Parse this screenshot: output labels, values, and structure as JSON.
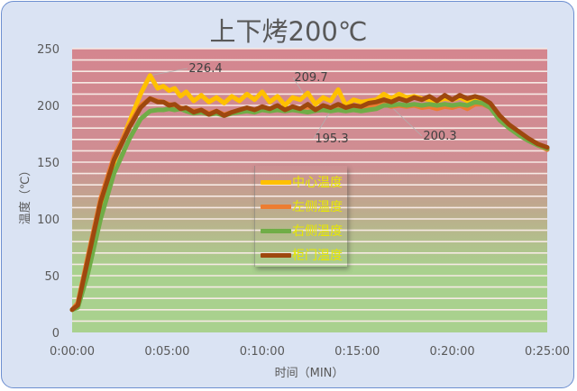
{
  "chart_data": {
    "type": "line",
    "title": "上下烤200℃",
    "xlabel": "时间（MIN）",
    "ylabel": "温度（℃）",
    "ylim": [
      0,
      250
    ],
    "xlim_minutes": [
      0,
      25
    ],
    "y_ticks": [
      "0",
      "50",
      "100",
      "150",
      "200",
      "250"
    ],
    "x_ticks": [
      "0:00:00",
      "0:05:00",
      "0:10:00",
      "0:15:00",
      "0:20:00",
      "0:25:00"
    ],
    "grid": "horizontal every 10",
    "background_gradient": {
      "top": "#d4868f",
      "bottom": "#a9d18e"
    },
    "legend_position": "center",
    "series": [
      {
        "name": "中心温度",
        "color": "#ffc000",
        "x": [
          0,
          0.3,
          0.8,
          1.5,
          2.2,
          3.0,
          3.6,
          4.1,
          4.5,
          4.8,
          5.1,
          5.4,
          5.7,
          6.0,
          6.4,
          6.8,
          7.2,
          7.6,
          8.0,
          8.4,
          8.8,
          9.2,
          9.6,
          10.0,
          10.4,
          10.8,
          11.2,
          11.6,
          12.0,
          12.4,
          12.8,
          13.2,
          13.6,
          14.0,
          14.4,
          14.8,
          15.2,
          15.6,
          16.0,
          16.4,
          16.8,
          17.2,
          17.6,
          18.0,
          18.4,
          18.8,
          19.2,
          19.6,
          20.0,
          20.4,
          20.8,
          21.2,
          21.6,
          22.0,
          22.5,
          23.0,
          23.5,
          24.0,
          24.5,
          25.0
        ],
        "y": [
          20,
          25,
          60,
          110,
          150,
          185,
          210,
          226.4,
          215,
          217,
          213,
          215,
          208,
          212,
          204,
          209,
          203,
          207,
          202,
          208,
          204,
          210,
          205,
          212,
          203,
          208,
          200,
          207,
          205,
          211,
          201,
          207,
          204,
          214,
          200,
          205,
          203,
          204,
          205,
          210,
          206,
          210,
          207,
          208,
          206,
          205,
          204,
          206,
          205,
          207,
          204,
          205,
          203,
          200,
          190,
          182,
          176,
          170,
          166,
          162
        ]
      },
      {
        "name": "左侧温度",
        "color": "#ed7d31",
        "x": [
          0,
          0.3,
          0.8,
          1.5,
          2.2,
          3.0,
          3.6,
          4.1,
          4.5,
          4.8,
          5.1,
          5.4,
          5.7,
          6.0,
          6.4,
          6.8,
          7.2,
          7.6,
          8.0,
          8.4,
          8.8,
          9.2,
          9.6,
          10.0,
          10.4,
          10.8,
          11.2,
          11.6,
          12.0,
          12.4,
          12.8,
          13.2,
          13.6,
          14.0,
          14.4,
          14.8,
          15.2,
          15.6,
          16.0,
          16.4,
          16.8,
          17.2,
          17.6,
          18.0,
          18.4,
          18.8,
          19.2,
          19.6,
          20.0,
          20.4,
          20.8,
          21.2,
          21.6,
          22.0,
          22.5,
          23.0,
          23.5,
          24.0,
          24.5,
          25.0
        ],
        "y": [
          20,
          26,
          65,
          118,
          155,
          182,
          200,
          206,
          204,
          203,
          201,
          200,
          198,
          197,
          195,
          196,
          193,
          195,
          192,
          194,
          195,
          197,
          196,
          198,
          197,
          199,
          196,
          198,
          197,
          199,
          196,
          198,
          197,
          198,
          196,
          197,
          196,
          199,
          200,
          201,
          199,
          200,
          199,
          200,
          198,
          199,
          197,
          199,
          198,
          200,
          197,
          201,
          201,
          198,
          188,
          180,
          175,
          170,
          165,
          161
        ]
      },
      {
        "name": "右侧温度",
        "color": "#70ad47",
        "x": [
          0,
          0.3,
          0.8,
          1.5,
          2.2,
          3.0,
          3.6,
          4.1,
          4.5,
          4.8,
          5.1,
          5.4,
          5.7,
          6.0,
          6.4,
          6.8,
          7.2,
          7.6,
          8.0,
          8.4,
          8.8,
          9.2,
          9.6,
          10.0,
          10.4,
          10.8,
          11.2,
          11.6,
          12.0,
          12.4,
          12.8,
          13.2,
          13.6,
          14.0,
          14.4,
          14.8,
          15.2,
          15.6,
          16.0,
          16.4,
          16.8,
          17.2,
          17.6,
          18.0,
          18.4,
          18.8,
          19.2,
          19.6,
          20.0,
          20.4,
          20.8,
          21.2,
          21.6,
          22.0,
          22.5,
          23.0,
          23.5,
          24.0,
          24.5,
          25.0
        ],
        "y": [
          20,
          22,
          50,
          100,
          140,
          170,
          188,
          195,
          196,
          196,
          197,
          196,
          197,
          195,
          193,
          194,
          192,
          193,
          191,
          193,
          194,
          195,
          194,
          196,
          195,
          196,
          195,
          196,
          195,
          194,
          195.3,
          196,
          195,
          196,
          195,
          196,
          195,
          196,
          197,
          200,
          200,
          201,
          200,
          201,
          200,
          201,
          200,
          201,
          200,
          201,
          200,
          203,
          202,
          198,
          187,
          180,
          174,
          169,
          165,
          162
        ]
      },
      {
        "name": "柜门温度",
        "color": "#9e480e",
        "x": [
          0,
          0.3,
          0.8,
          1.5,
          2.2,
          3.0,
          3.6,
          4.1,
          4.5,
          4.8,
          5.1,
          5.4,
          5.7,
          6.0,
          6.4,
          6.8,
          7.2,
          7.6,
          8.0,
          8.4,
          8.8,
          9.2,
          9.6,
          10.0,
          10.4,
          10.8,
          11.2,
          11.6,
          12.0,
          12.4,
          12.8,
          13.2,
          13.6,
          14.0,
          14.4,
          14.8,
          15.2,
          15.6,
          16.0,
          16.4,
          16.8,
          17.2,
          17.6,
          18.0,
          18.4,
          18.8,
          19.2,
          19.6,
          20.0,
          20.4,
          20.8,
          21.2,
          21.6,
          22.0,
          22.5,
          23.0,
          23.5,
          24.0,
          24.5,
          25.0
        ],
        "y": [
          20,
          24,
          62,
          115,
          152,
          180,
          198,
          206,
          203,
          203,
          200,
          201,
          197,
          198,
          194,
          196,
          192,
          195,
          191,
          194,
          196,
          198,
          196,
          199,
          197,
          200,
          196,
          199,
          197,
          201,
          196,
          200,
          198,
          201,
          198,
          200,
          199,
          202,
          203,
          205,
          203,
          206,
          204,
          207,
          205,
          208,
          204,
          209,
          205,
          209,
          206,
          208,
          206,
          202,
          191,
          183,
          177,
          171,
          166,
          163
        ]
      }
    ],
    "annotations": [
      {
        "label": "226.4",
        "x": 4.1,
        "y": 226.4
      },
      {
        "label": "209.7",
        "x": 12.2,
        "y": 209.7
      },
      {
        "label": "195.3",
        "x": 13.6,
        "y": 195.3
      },
      {
        "label": "200.3",
        "x": 16.7,
        "y": 200.3
      }
    ]
  }
}
